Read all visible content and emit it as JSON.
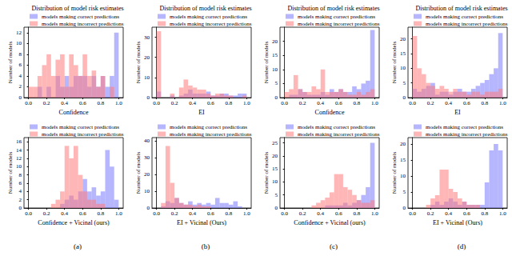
{
  "chart_data": [
    {
      "type": "histogram",
      "title": "Distribution of model risk estimates",
      "xlabel": "Confidence",
      "ylabel": "Number of models",
      "legend": "top",
      "grid": false,
      "bins": [
        0,
        0.05,
        0.1,
        0.15,
        0.2,
        0.25,
        0.3,
        0.35,
        0.4,
        0.45,
        0.5,
        0.55,
        0.6,
        0.65,
        0.7,
        0.75,
        0.8,
        0.85,
        0.9,
        0.95,
        1.0
      ],
      "series": [
        {
          "name": "models making correct predictions",
          "color": "#7a7aff",
          "values": [
            0,
            0,
            2,
            0,
            2,
            0,
            4,
            2,
            4,
            2,
            4,
            4,
            4,
            2,
            4,
            2,
            4,
            2,
            4,
            12
          ]
        },
        {
          "name": "models making incorrect predictions",
          "color": "#ff7a7a",
          "values": [
            2,
            2,
            4,
            6,
            8,
            4,
            7,
            8,
            2,
            8,
            6,
            4,
            8,
            4,
            5,
            2,
            4,
            0,
            2,
            0
          ]
        }
      ],
      "xlim": [
        -0.05,
        1.05
      ],
      "xticks": [
        {
          "value": 0,
          "label": "0.0"
        },
        {
          "value": 0.2,
          "label": "0.2"
        },
        {
          "value": 0.4,
          "label": "0.4"
        },
        {
          "value": 0.6,
          "label": "0.6"
        },
        {
          "value": 0.8,
          "label": "0.8"
        },
        {
          "value": 1,
          "label": "1.0"
        }
      ],
      "ylim": [
        0,
        13
      ],
      "yticks": [
        0,
        2,
        4,
        6,
        8,
        10,
        12
      ]
    },
    {
      "type": "histogram",
      "title": "Distribution of model risk estimates",
      "xlabel": "EI",
      "ylabel": "Number of models",
      "legend": "top",
      "grid": false,
      "bins": [
        0,
        0.05,
        0.1,
        0.15,
        0.2,
        0.25,
        0.3,
        0.35,
        0.4,
        0.45,
        0.5,
        0.55,
        0.6,
        0.65,
        0.7,
        0.75,
        0.8,
        0.85,
        0.9,
        0.95,
        1.0
      ],
      "series": [
        {
          "name": "models making correct predictions",
          "color": "#7a7aff",
          "values": [
            3,
            0,
            0,
            1,
            0,
            1,
            2,
            4,
            2,
            2,
            2,
            3,
            1,
            1,
            2,
            2,
            1,
            1,
            2,
            2
          ]
        },
        {
          "name": "models making incorrect predictions",
          "color": "#ff7a7a",
          "values": [
            33,
            0,
            0,
            2,
            0,
            5,
            9,
            6,
            5,
            4,
            4,
            2,
            1,
            2,
            2,
            1,
            1,
            0,
            0,
            1
          ]
        }
      ],
      "xlim": [
        -0.05,
        1.05
      ],
      "xticks": [
        {
          "value": 0,
          "label": "0.0"
        },
        {
          "value": 0.2,
          "label": "0.2"
        },
        {
          "value": 0.4,
          "label": "0.4"
        },
        {
          "value": 0.6,
          "label": "0.6"
        },
        {
          "value": 0.8,
          "label": "0.8"
        },
        {
          "value": 1,
          "label": "1.0"
        }
      ],
      "ylim": [
        0,
        35
      ],
      "yticks": [
        0,
        10,
        20,
        30
      ]
    },
    {
      "type": "histogram",
      "title": "Distribution of model risk estimates",
      "xlabel": "Confidence",
      "ylabel": "Number of models",
      "legend": "top",
      "grid": false,
      "bins": [
        0,
        0.05,
        0.1,
        0.15,
        0.2,
        0.25,
        0.3,
        0.35,
        0.4,
        0.45,
        0.5,
        0.55,
        0.6,
        0.65,
        0.7,
        0.75,
        0.8,
        0.85,
        0.9,
        0.95,
        1.0
      ],
      "series": [
        {
          "name": "models making correct predictions",
          "color": "#7a7aff",
          "values": [
            0,
            1,
            1,
            3,
            2,
            1,
            1,
            1,
            2,
            1,
            3,
            2,
            3,
            2,
            2,
            4,
            3,
            5,
            6,
            24
          ]
        },
        {
          "name": "models making incorrect predictions",
          "color": "#ff7a7a",
          "values": [
            2,
            3,
            8,
            3,
            2,
            2,
            4,
            3,
            10,
            2,
            2,
            2,
            3,
            2,
            1,
            1,
            2,
            1,
            2,
            3
          ]
        }
      ],
      "xlim": [
        -0.05,
        1.05
      ],
      "xticks": [
        {
          "value": 0,
          "label": "0.0"
        },
        {
          "value": 0.2,
          "label": "0.2"
        },
        {
          "value": 0.4,
          "label": "0.4"
        },
        {
          "value": 0.6,
          "label": "0.6"
        },
        {
          "value": 0.8,
          "label": "0.8"
        },
        {
          "value": 1,
          "label": "1.0"
        }
      ],
      "ylim": [
        0,
        25
      ],
      "yticks": [
        0,
        5,
        10,
        15,
        20
      ]
    },
    {
      "type": "histogram",
      "title": "Distribution of model risk estimates",
      "xlabel": "EI",
      "ylabel": "Number of models",
      "legend": "top",
      "grid": false,
      "bins": [
        0,
        0.05,
        0.1,
        0.15,
        0.2,
        0.25,
        0.3,
        0.35,
        0.4,
        0.45,
        0.5,
        0.55,
        0.6,
        0.65,
        0.7,
        0.75,
        0.8,
        0.85,
        0.9,
        0.95,
        1.0
      ],
      "series": [
        {
          "name": "models making correct predictions",
          "color": "#7a7aff",
          "values": [
            3,
            2,
            3,
            4,
            5,
            1,
            2,
            2,
            1,
            2,
            3,
            2,
            2,
            3,
            4,
            5,
            6,
            8,
            10,
            22
          ]
        },
        {
          "name": "models making incorrect predictions",
          "color": "#ff7a7a",
          "values": [
            21,
            10,
            8,
            5,
            4,
            3,
            4,
            3,
            2,
            3,
            2,
            2,
            1,
            2,
            2,
            1,
            2,
            2,
            2,
            3
          ]
        }
      ],
      "xlim": [
        -0.05,
        1.05
      ],
      "xticks": [
        {
          "value": 0,
          "label": "0.0"
        },
        {
          "value": 0.2,
          "label": "0.2"
        },
        {
          "value": 0.4,
          "label": "0.4"
        },
        {
          "value": 0.6,
          "label": "0.6"
        },
        {
          "value": 0.8,
          "label": "0.8"
        },
        {
          "value": 1,
          "label": "1.0"
        }
      ],
      "ylim": [
        0,
        24
      ],
      "yticks": [
        0,
        5,
        10,
        15,
        20
      ]
    },
    {
      "type": "histogram",
      "xlabel": "Confidence + Vicinal (ours)",
      "ylabel": "Number of models",
      "caption": "(a)",
      "legend": "top",
      "grid": false,
      "bins": [
        0,
        0.05,
        0.1,
        0.15,
        0.2,
        0.25,
        0.3,
        0.35,
        0.4,
        0.45,
        0.5,
        0.55,
        0.6,
        0.65,
        0.7,
        0.75,
        0.8,
        0.85,
        0.9,
        0.95,
        1.0
      ],
      "series": [
        {
          "name": "models making correct predictions",
          "color": "#7a7aff",
          "values": [
            0,
            0,
            0,
            0,
            0,
            0,
            0,
            1,
            2,
            3,
            2,
            4,
            7,
            4,
            5,
            3,
            4,
            14,
            10,
            2
          ]
        },
        {
          "name": "models making incorrect predictions",
          "color": "#ff7a7a",
          "values": [
            0,
            0,
            0,
            0,
            0,
            1,
            2,
            4,
            15,
            12,
            15,
            8,
            4,
            2,
            2,
            1,
            1,
            0,
            0,
            0
          ]
        }
      ],
      "xlim": [
        -0.05,
        1.05
      ],
      "xticks": [
        {
          "value": 0,
          "label": "0.0"
        },
        {
          "value": 0.2,
          "label": "0.2"
        },
        {
          "value": 0.4,
          "label": "0.4"
        },
        {
          "value": 0.6,
          "label": "0.6"
        },
        {
          "value": 0.8,
          "label": "0.8"
        },
        {
          "value": 1,
          "label": "1.0"
        }
      ],
      "ylim": [
        0,
        17
      ],
      "yticks": [
        0,
        2,
        4,
        6,
        8,
        10,
        12,
        14,
        16
      ]
    },
    {
      "type": "histogram",
      "xlabel": "EI + Vicinal (Ours)",
      "ylabel": "Number of models",
      "caption": "(b)",
      "legend": "top",
      "grid": false,
      "bins": [
        0,
        0.05,
        0.1,
        0.15,
        0.2,
        0.25,
        0.3,
        0.35,
        0.4,
        0.45,
        0.5,
        0.55,
        0.6,
        0.65,
        0.7,
        0.75,
        0.8,
        0.85,
        0.9,
        0.95,
        1.0
      ],
      "series": [
        {
          "name": "models making correct predictions",
          "color": "#7a7aff",
          "values": [
            0,
            1,
            4,
            3,
            6,
            3,
            2,
            4,
            2,
            3,
            2,
            3,
            2,
            6,
            3,
            3,
            2,
            4,
            1,
            0
          ]
        },
        {
          "name": "models making incorrect predictions",
          "color": "#ff7a7a",
          "values": [
            0,
            3,
            37,
            15,
            6,
            3,
            2,
            2,
            1,
            2,
            1,
            1,
            0,
            0,
            0,
            0,
            0,
            0,
            0,
            0
          ]
        }
      ],
      "xlim": [
        -0.05,
        1.05
      ],
      "xticks": [
        {
          "value": 0,
          "label": "0.0"
        },
        {
          "value": 0.2,
          "label": "0.2"
        },
        {
          "value": 0.4,
          "label": "0.4"
        },
        {
          "value": 0.6,
          "label": "0.6"
        },
        {
          "value": 0.8,
          "label": "0.8"
        },
        {
          "value": 1,
          "label": "1.0"
        }
      ],
      "ylim": [
        0,
        42
      ],
      "yticks": [
        0,
        10,
        20,
        30,
        40
      ]
    },
    {
      "type": "histogram",
      "xlabel": "Confidence + Vicinal (ours)",
      "ylabel": "Number of models",
      "caption": "(c)",
      "legend": "top",
      "grid": false,
      "bins": [
        0,
        0.05,
        0.1,
        0.15,
        0.2,
        0.25,
        0.3,
        0.35,
        0.4,
        0.45,
        0.5,
        0.55,
        0.6,
        0.65,
        0.7,
        0.75,
        0.8,
        0.85,
        0.9,
        0.95,
        1.0
      ],
      "series": [
        {
          "name": "models making correct predictions",
          "color": "#7a7aff",
          "values": [
            0,
            0,
            0,
            0,
            0,
            0,
            0,
            0,
            0,
            1,
            1,
            1,
            1,
            2,
            1,
            2,
            3,
            5,
            8,
            25
          ]
        },
        {
          "name": "models making incorrect predictions",
          "color": "#ff7a7a",
          "values": [
            0,
            0,
            0,
            0,
            0,
            0,
            1,
            2,
            3,
            4,
            6,
            13,
            13,
            8,
            7,
            5,
            3,
            2,
            2,
            3
          ]
        }
      ],
      "xlim": [
        -0.05,
        1.05
      ],
      "xticks": [
        {
          "value": 0,
          "label": "0.0"
        },
        {
          "value": 0.2,
          "label": "0.2"
        },
        {
          "value": 0.4,
          "label": "0.4"
        },
        {
          "value": 0.6,
          "label": "0.6"
        },
        {
          "value": 0.8,
          "label": "0.8"
        },
        {
          "value": 1,
          "label": "1.0"
        }
      ],
      "ylim": [
        0,
        27
      ],
      "yticks": [
        0,
        5,
        10,
        15,
        20,
        25
      ]
    },
    {
      "type": "histogram",
      "xlabel": "EI + Vicinal (Ours)",
      "ylabel": "Number of models",
      "caption": "(d)",
      "legend": "top",
      "grid": false,
      "bins": [
        0,
        0.05,
        0.1,
        0.15,
        0.2,
        0.25,
        0.3,
        0.35,
        0.4,
        0.45,
        0.5,
        0.55,
        0.6,
        0.65,
        0.7,
        0.75,
        0.8,
        0.85,
        0.9,
        0.95,
        1.0
      ],
      "series": [
        {
          "name": "models making correct predictions",
          "color": "#7a7aff",
          "values": [
            0,
            0,
            0,
            0,
            1,
            2,
            1,
            2,
            3,
            2,
            1,
            2,
            1,
            1,
            1,
            1,
            8,
            18,
            20,
            18
          ]
        },
        {
          "name": "models making incorrect predictions",
          "color": "#ff7a7a",
          "values": [
            0,
            0,
            0,
            1,
            3,
            4,
            12,
            12,
            6,
            5,
            3,
            2,
            1,
            1,
            1,
            0,
            0,
            0,
            0,
            0
          ]
        }
      ],
      "xlim": [
        -0.05,
        1.05
      ],
      "xticks": [
        {
          "value": 0,
          "label": "0.0"
        },
        {
          "value": 0.2,
          "label": "0.2"
        },
        {
          "value": 0.4,
          "label": "0.4"
        },
        {
          "value": 0.6,
          "label": "0.6"
        },
        {
          "value": 0.8,
          "label": "0.8"
        },
        {
          "value": 1,
          "label": "1.0"
        }
      ],
      "ylim": [
        0,
        22
      ],
      "yticks": [
        0,
        5,
        10,
        15,
        20
      ]
    }
  ]
}
